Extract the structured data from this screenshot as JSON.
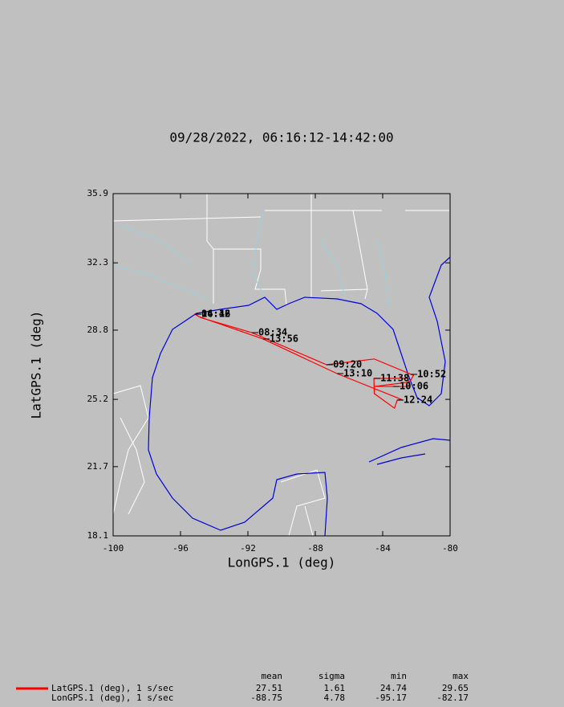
{
  "chart_data": {
    "type": "line",
    "title": "09/28/2022, 06:16:12-14:42:00",
    "xlabel": "LonGPS.1 (deg)",
    "ylabel": "LatGPS.1 (deg)",
    "xlim": [
      -100,
      -80
    ],
    "ylim": [
      18.1,
      35.9
    ],
    "xticks": [
      -100,
      -96,
      -92,
      -88,
      -84,
      -80
    ],
    "yticks": [
      18.1,
      21.7,
      25.2,
      28.8,
      32.3,
      35.9
    ],
    "x": [
      -95.17,
      -94.8,
      -91.76,
      -87.33,
      -84.5,
      -82.17,
      -82.4,
      -84.5,
      -82.4,
      -82.5,
      -84.52,
      -84.5,
      -83.3,
      -83.14,
      -82.9,
      -86.71,
      -91.1,
      -94.9,
      -95.1
    ],
    "series": [
      {
        "color": "#ff0000",
        "values": [
          29.65,
          29.45,
          28.67,
          27.0,
          27.3,
          26.45,
          26.1,
          25.87,
          25.87,
          26.29,
          26.29,
          25.5,
          24.74,
          25.16,
          25.2,
          26.54,
          28.34,
          29.5,
          29.6
        ]
      }
    ],
    "annotations": [
      {
        "text": "06:16",
        "x": -95.14,
        "y": 29.63
      },
      {
        "text": "14:42",
        "x": -95.14,
        "y": 29.63
      },
      {
        "text": "08:34",
        "x": -91.76,
        "y": 28.67
      },
      {
        "text": "13:56",
        "x": -91.1,
        "y": 28.34
      },
      {
        "text": "09:20",
        "x": -87.33,
        "y": 27.0
      },
      {
        "text": "13:10",
        "x": -86.71,
        "y": 26.54
      },
      {
        "text": "11:38",
        "x": -84.52,
        "y": 26.29
      },
      {
        "text": "10:52",
        "x": -82.33,
        "y": 26.5
      },
      {
        "text": "10:06",
        "x": -83.38,
        "y": 25.87
      },
      {
        "text": "12:24",
        "x": -83.14,
        "y": 25.16
      }
    ]
  },
  "stats": {
    "columns": [
      "mean",
      "sigma",
      "min",
      "max"
    ],
    "rows": [
      {
        "label": "LatGPS.1 (deg), 1 s/sec",
        "color": "#ff0000",
        "values": [
          27.51,
          1.61,
          24.74,
          29.65
        ]
      },
      {
        "label": "LonGPS.1 (deg), 1 s/sec",
        "values": [
          -88.75,
          4.78,
          -95.17,
          -82.17
        ]
      }
    ]
  }
}
